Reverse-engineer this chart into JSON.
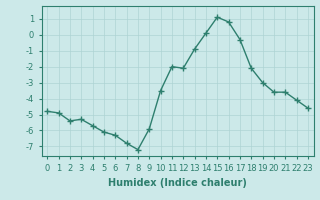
{
  "x": [
    0,
    1,
    2,
    3,
    4,
    5,
    6,
    7,
    8,
    9,
    10,
    11,
    12,
    13,
    14,
    15,
    16,
    17,
    18,
    19,
    20,
    21,
    22,
    23
  ],
  "y": [
    -4.8,
    -4.9,
    -5.4,
    -5.3,
    -5.7,
    -6.1,
    -6.3,
    -6.8,
    -7.2,
    -5.9,
    -3.5,
    -2.0,
    -2.1,
    -0.9,
    0.1,
    1.1,
    0.8,
    -0.3,
    -2.1,
    -3.0,
    -3.6,
    -3.6,
    -4.1,
    -4.6
  ],
  "line_color": "#2e7f6e",
  "marker": "+",
  "marker_size": 4,
  "bg_color": "#cce9e9",
  "grid_color": "#aed4d4",
  "ylabel_ticks": [
    1,
    0,
    -1,
    -2,
    -3,
    -4,
    -5,
    -6,
    -7
  ],
  "ylim": [
    -7.6,
    1.8
  ],
  "xlim": [
    -0.5,
    23.5
  ],
  "xlabel": "Humidex (Indice chaleur)",
  "xtick_labels": [
    "0",
    "1",
    "2",
    "3",
    "4",
    "5",
    "6",
    "7",
    "8",
    "9",
    "10",
    "11",
    "12",
    "13",
    "14",
    "15",
    "16",
    "17",
    "18",
    "19",
    "20",
    "21",
    "22",
    "23"
  ],
  "xlabel_fontsize": 7,
  "tick_fontsize": 6,
  "line_width": 1.0
}
